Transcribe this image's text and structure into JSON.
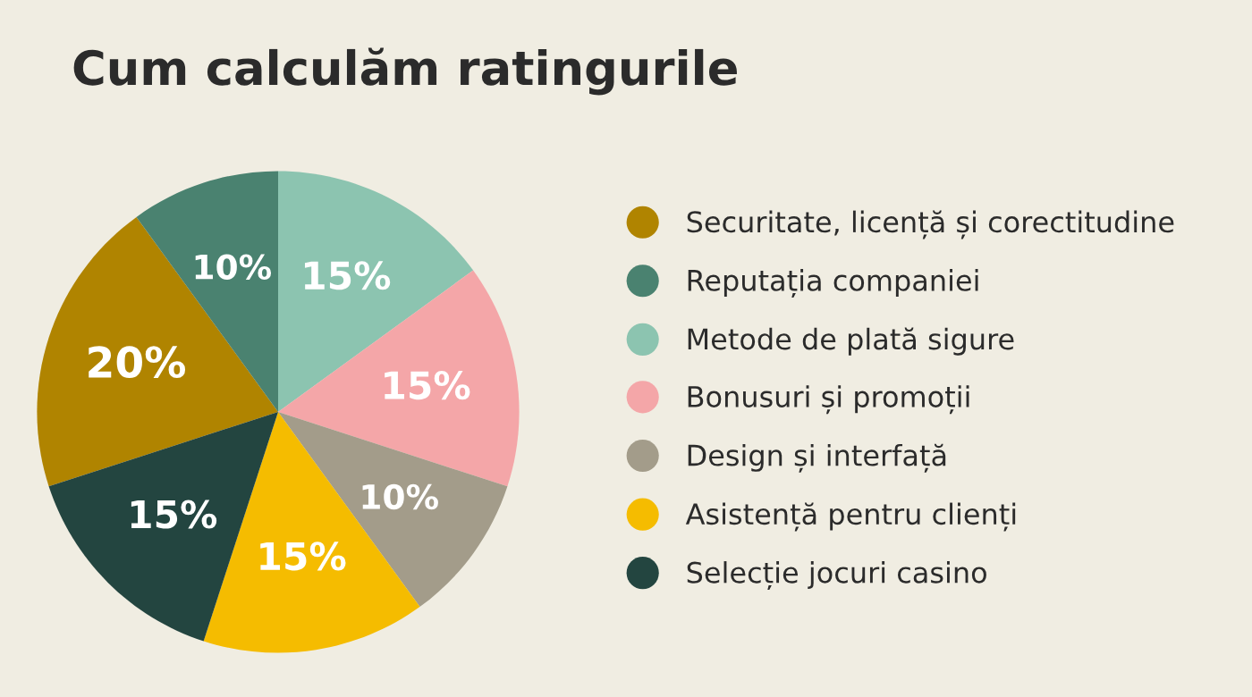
{
  "chart_data": {
    "type": "pie",
    "title": "Cum calculăm ratingurile",
    "categories": [
      "Securitate, licență și corectitudine",
      "Reputația companiei",
      "Metode de plată sigure",
      "Bonusuri și promoții",
      "Design și interfață",
      "Asistență pentru clienți",
      "Selecție jocuri casino"
    ],
    "values": [
      20,
      10,
      15,
      15,
      10,
      15,
      15
    ],
    "value_labels": [
      "20%",
      "10%",
      "15%",
      "15%",
      "10%",
      "15%",
      "15%"
    ],
    "colors": [
      "#b08400",
      "#4a8270",
      "#8cc4b0",
      "#f4a6a8",
      "#a39c8a",
      "#f5bc00",
      "#234540"
    ],
    "legend": "right"
  }
}
